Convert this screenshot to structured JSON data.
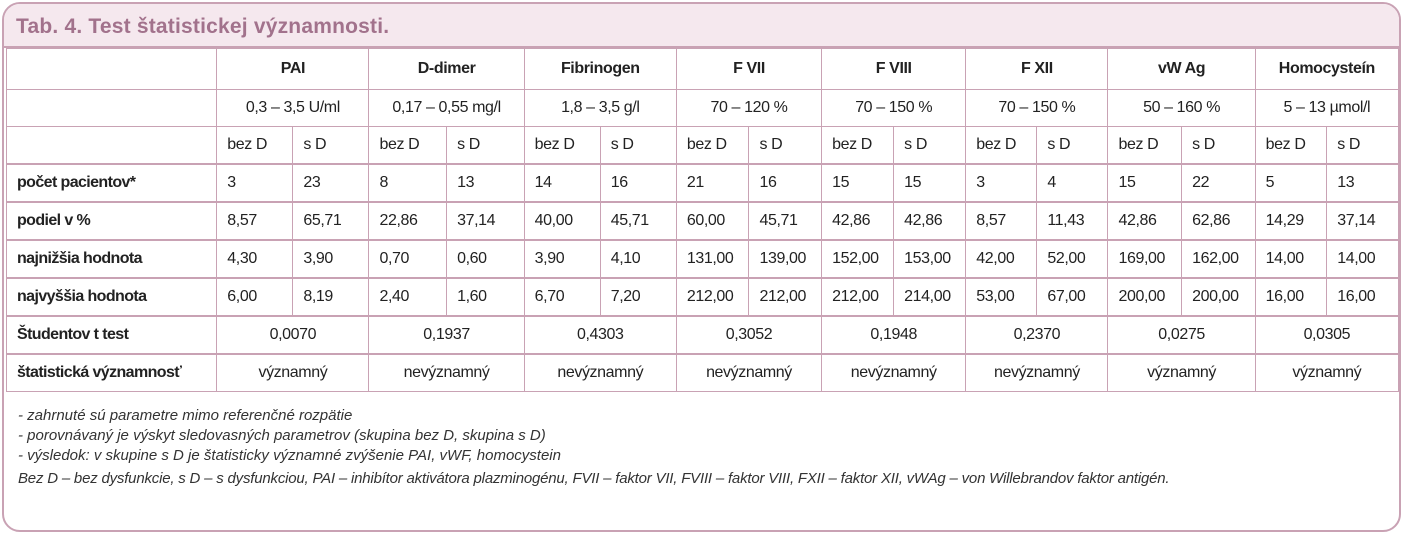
{
  "title": "Tab. 4. Test štatistickej významnosti.",
  "table": {
    "parameters": [
      {
        "name": "PAI",
        "range": "0,3 – 3,5  U/ml"
      },
      {
        "name": "D-dimer",
        "range": "0,17 – 0,55 mg/l"
      },
      {
        "name": "Fibrinogen",
        "range": "1,8 – 3,5 g/l"
      },
      {
        "name": "F VII",
        "range": "70 – 120 %"
      },
      {
        "name": "F VIII",
        "range": "70 – 150 %"
      },
      {
        "name": "F XII",
        "range": "70 – 150 %"
      },
      {
        "name": "vW Ag",
        "range": "50 – 160 %"
      },
      {
        "name": "Homocysteín",
        "range": "5 – 13  µmol/l"
      }
    ],
    "group_labels": [
      "bez D",
      "s D"
    ],
    "rows": [
      {
        "label": "počet pacientov*",
        "values": [
          3,
          23,
          8,
          13,
          14,
          16,
          21,
          16,
          15,
          15,
          3,
          4,
          15,
          22,
          5,
          13
        ]
      },
      {
        "label": "podiel v %",
        "values": [
          "8,57",
          "65,71",
          "22,86",
          "37,14",
          "40,00",
          "45,71",
          "60,00",
          "45,71",
          "42,86",
          "42,86",
          "8,57",
          "11,43",
          "42,86",
          "62,86",
          "14,29",
          "37,14"
        ]
      },
      {
        "label": "najnižšia hodnota",
        "values": [
          "4,30",
          "3,90",
          "0,70",
          "0,60",
          "3,90",
          "4,10",
          "131,00",
          "139,00",
          "152,00",
          "153,00",
          "42,00",
          "52,00",
          "169,00",
          "162,00",
          "14,00",
          "14,00"
        ]
      },
      {
        "label": "najvyššia hodnota",
        "values": [
          "6,00",
          "8,19",
          "2,40",
          "1,60",
          "6,70",
          "7,20",
          "212,00",
          "212,00",
          "212,00",
          "214,00",
          "53,00",
          "67,00",
          "200,00",
          "200,00",
          "16,00",
          "16,00"
        ]
      }
    ],
    "t_test": {
      "label": "Študentov t test",
      "values": [
        "0,0070",
        "0,1937",
        "0,4303",
        "0,3052",
        "0,1948",
        "0,2370",
        "0,0275",
        "0,0305"
      ]
    },
    "significance": {
      "label": "štatistická významnosť",
      "values": [
        "významný",
        "nevýznamný",
        "nevýznamný",
        "nevýznamný",
        "nevýznamný",
        "nevýznamný",
        "významný",
        "významný"
      ]
    }
  },
  "notes": [
    "- zahrnuté sú parametre mimo referenčné rozpätie",
    "- porovnávaný je výskyt sledovasných parametrov (skupina bez D, skupina s D)",
    "- výsledok: v skupine s D je štatisticky významné zvýšenie PAI, vWF, homocystein"
  ],
  "footnote": "Bez D – bez dysfunkcie, s D – s dysfunkciou, PAI – inhibítor aktivátora plazminogénu, FVII – faktor VII, FVIII – faktor VIII, FXII – faktor XII, vWAg – von Willebrandov faktor antigén."
}
